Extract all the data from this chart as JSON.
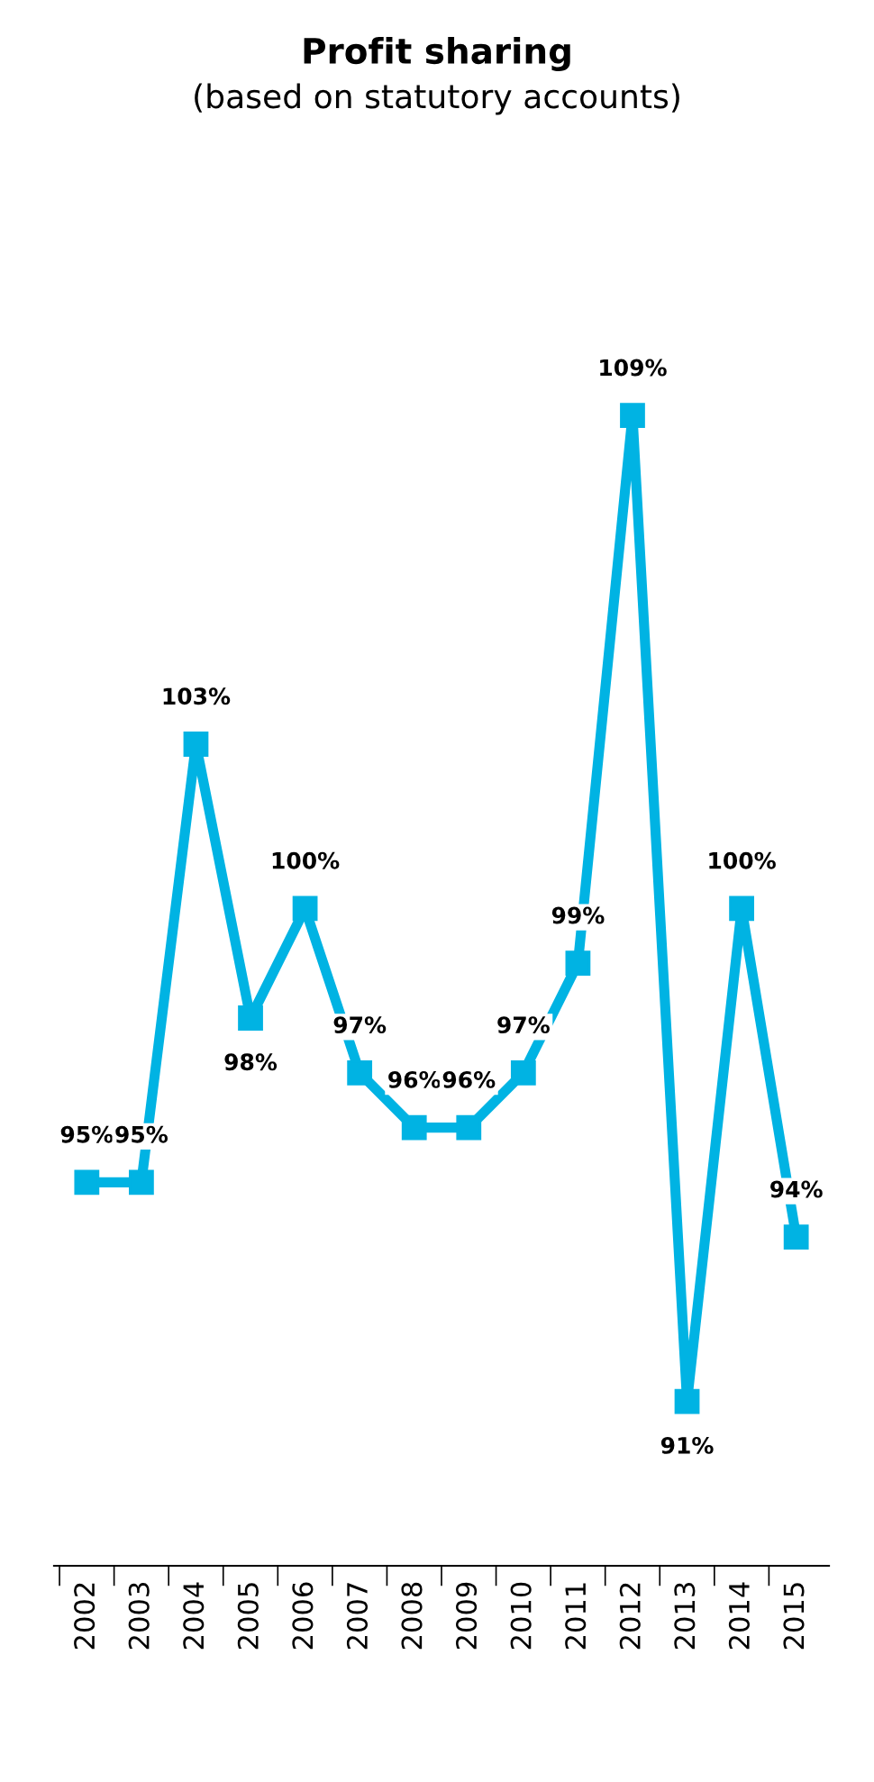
{
  "chart_data": {
    "type": "line",
    "title": "Profit sharing",
    "subtitle": "(based on statutory accounts)",
    "categories": [
      "2002",
      "2003",
      "2004",
      "2005",
      "2006",
      "2007",
      "2008",
      "2009",
      "2010",
      "2011",
      "2012",
      "2013",
      "2014",
      "2015"
    ],
    "values": [
      95,
      95,
      103,
      98,
      100,
      97,
      96,
      96,
      97,
      99,
      109,
      91,
      100,
      94
    ],
    "value_labels": [
      "95%",
      "95%",
      "103%",
      "98%",
      "100%",
      "97%",
      "96%",
      "96%",
      "97%",
      "99%",
      "109%",
      "91%",
      "100%",
      "94%"
    ],
    "color": "#00b3e3",
    "marker": "square",
    "line_style": "solid",
    "grid": false,
    "legend": false
  }
}
